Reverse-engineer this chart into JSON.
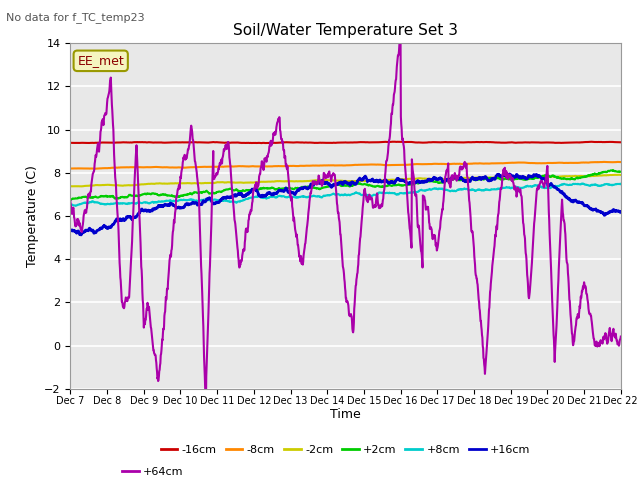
{
  "title": "Soil/Water Temperature Set 3",
  "ylabel": "Temperature (C)",
  "xlabel": "Time",
  "note": "No data for f_TC_temp23",
  "annotation": "EE_met",
  "ylim": [
    -2,
    14
  ],
  "yticks": [
    -2,
    0,
    2,
    4,
    6,
    8,
    10,
    12,
    14
  ],
  "xlim": [
    0,
    15
  ],
  "xtick_labels": [
    "Dec 7",
    "Dec 8",
    "Dec 9",
    "Dec 10",
    "Dec 11",
    "Dec 12",
    "Dec 13",
    "Dec 14",
    "Dec 15",
    "Dec 16",
    "Dec 17",
    "Dec 18",
    "Dec 19",
    "Dec 20",
    "Dec 21",
    "Dec 22"
  ],
  "fig_bg": "#ffffff",
  "plot_bg": "#e8e8e8",
  "grid_color": "#ffffff",
  "series": {
    "-16cm": {
      "color": "#cc0000",
      "lw": 1.5
    },
    "-8cm": {
      "color": "#ff8800",
      "lw": 1.5
    },
    "-2cm": {
      "color": "#cccc00",
      "lw": 1.5
    },
    "+2cm": {
      "color": "#00cc00",
      "lw": 1.5
    },
    "+8cm": {
      "color": "#00cccc",
      "lw": 1.5
    },
    "+16cm": {
      "color": "#0000cc",
      "lw": 2.0
    },
    "+64cm": {
      "color": "#aa00aa",
      "lw": 1.5
    }
  },
  "legend_items": [
    [
      "-16cm",
      "#cc0000"
    ],
    [
      "-8cm",
      "#ff8800"
    ],
    [
      "-2cm",
      "#cccc00"
    ],
    [
      "+2cm",
      "#00cc00"
    ],
    [
      "+8cm",
      "#00cccc"
    ],
    [
      "+16cm",
      "#0000cc"
    ],
    [
      "+64cm",
      "#aa00aa"
    ]
  ]
}
